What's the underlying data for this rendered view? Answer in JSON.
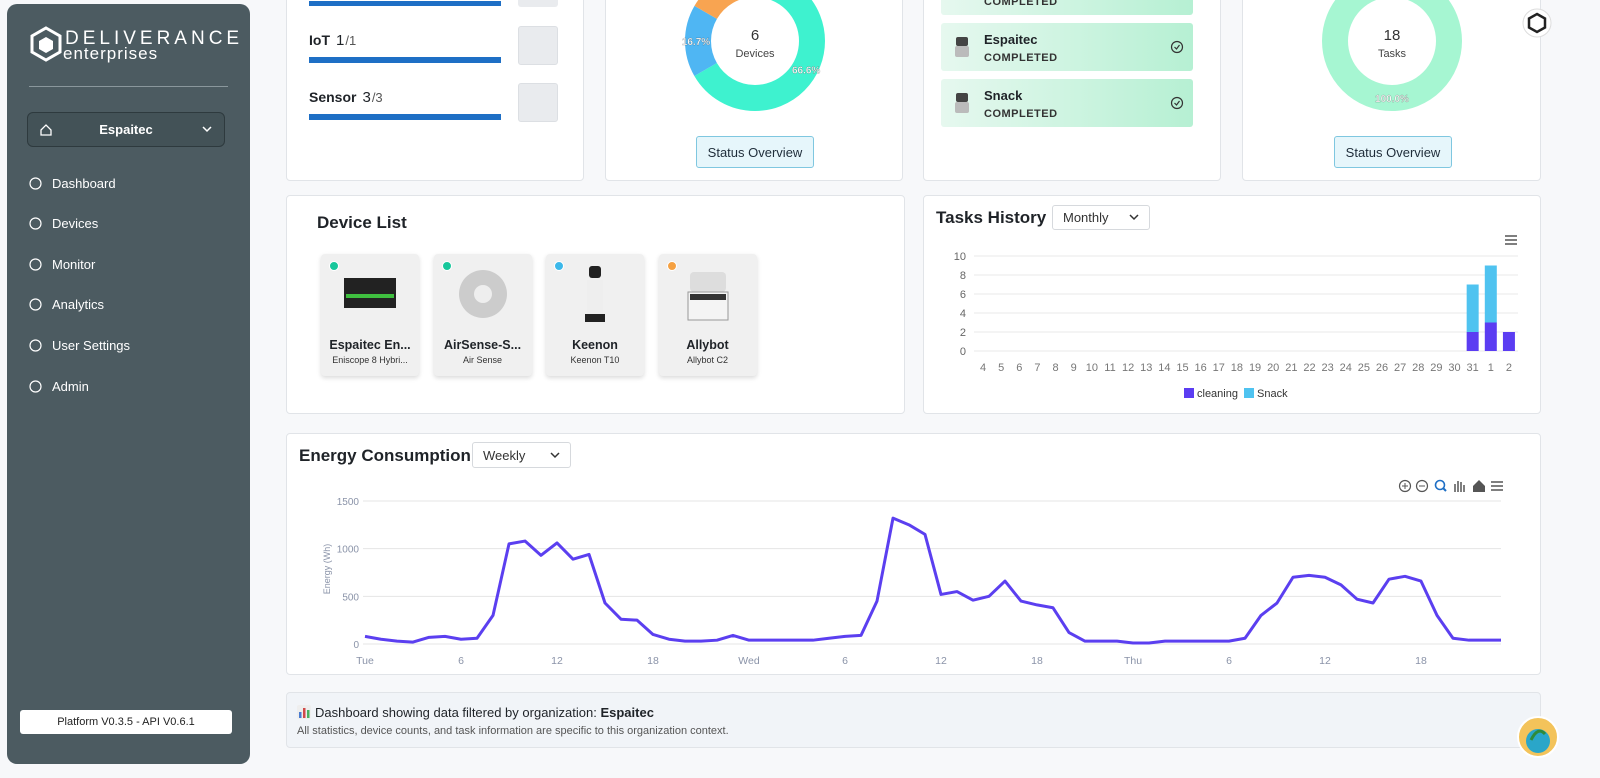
{
  "sidebar": {
    "brand": "DELIVERANCE",
    "brand_sub": "enterprises",
    "organization": "Espaitec",
    "nav": [
      "Dashboard",
      "Devices",
      "Monitor",
      "Analytics",
      "User Settings",
      "Admin"
    ],
    "version": "Platform V0.3.5 - API V0.6.1"
  },
  "device_types": [
    {
      "name": "IoT",
      "count": 1,
      "total": "/1"
    },
    {
      "name": "Sensor",
      "count": 3,
      "total": "/3"
    }
  ],
  "tasks": [
    {
      "status": "COMPLETED"
    },
    {
      "name": "Espaitec",
      "status": "COMPLETED"
    },
    {
      "name": "Snack",
      "status": "COMPLETED"
    }
  ],
  "status_buttons": [
    "Status Overview",
    "Status Overview"
  ],
  "device_list": {
    "title": "Device List",
    "devices": [
      {
        "name": "Espaitec En...",
        "model": "Eniscope 8 Hybri...",
        "status_color": "#17c79b"
      },
      {
        "name": "AirSense-S...",
        "model": "Air Sense",
        "status_color": "#17c79b"
      },
      {
        "name": "Keenon",
        "model": "Keenon T10",
        "status_color": "#3cb8ea"
      },
      {
        "name": "Allybot",
        "model": "Allybot C2",
        "status_color": "#f5a142"
      }
    ]
  },
  "footer": {
    "prefix": "Dashboard showing data filtered by organization:",
    "organization": "Espaitec",
    "note": "All statistics, device counts, and task information are specific to this organization context."
  },
  "chart_data": [
    {
      "type": "donut",
      "center_value": 6,
      "center_label": "Devices",
      "values": [
        66.6,
        16.7,
        16.7
      ],
      "value_labels": [
        "66.6%",
        "16.7%",
        null
      ],
      "colors": [
        "#3ef2cf",
        "#4fb6f3",
        "#f8a451"
      ]
    },
    {
      "type": "donut",
      "center_value": 18,
      "center_label": "Tasks",
      "values": [
        100
      ],
      "value_labels": [
        "100.0%"
      ],
      "colors": [
        "#a6f6d2"
      ]
    },
    {
      "type": "bar",
      "stacked": true,
      "title": "Tasks History",
      "period": "Monthly",
      "categories": [
        "4",
        "5",
        "6",
        "7",
        "8",
        "9",
        "10",
        "11",
        "12",
        "13",
        "14",
        "15",
        "16",
        "17",
        "18",
        "19",
        "20",
        "21",
        "22",
        "23",
        "24",
        "25",
        "26",
        "27",
        "28",
        "29",
        "30",
        "31",
        "1",
        "2"
      ],
      "series": [
        {
          "name": "cleaning",
          "color": "#5b3df2",
          "values": [
            0,
            0,
            0,
            0,
            0,
            0,
            0,
            0,
            0,
            0,
            0,
            0,
            0,
            0,
            0,
            0,
            0,
            0,
            0,
            0,
            0,
            0,
            0,
            0,
            0,
            0,
            0,
            2,
            3,
            2
          ]
        },
        {
          "name": "Snack",
          "color": "#4fc3f0",
          "values": [
            0,
            0,
            0,
            0,
            0,
            0,
            0,
            0,
            0,
            0,
            0,
            0,
            0,
            0,
            0,
            0,
            0,
            0,
            0,
            0,
            0,
            0,
            0,
            0,
            0,
            0,
            0,
            5,
            6,
            0
          ]
        }
      ],
      "ylim": [
        0,
        10
      ],
      "yticks": [
        0,
        2,
        4,
        6,
        8,
        10
      ],
      "grid": true,
      "legend": "bottom"
    },
    {
      "type": "line",
      "title": "Energy Consumption",
      "period": "Weekly",
      "y_label": "Energy (Wh)",
      "color": "#5b3ff0",
      "x": [
        0,
        1,
        2,
        3,
        4,
        5,
        6,
        7,
        8,
        9,
        10,
        11,
        12,
        13,
        14,
        15,
        16,
        17,
        18,
        19,
        20,
        21,
        22,
        23,
        24,
        25,
        26,
        27,
        28,
        29,
        30,
        31,
        32,
        33,
        34,
        35,
        36,
        37,
        38,
        39,
        40,
        41,
        42,
        43,
        44,
        45,
        46,
        47,
        48,
        49,
        50,
        51,
        52,
        53,
        54,
        55,
        56,
        57,
        58,
        59,
        60,
        61,
        62,
        63,
        64,
        65,
        66,
        67,
        68,
        69,
        70,
        71
      ],
      "values": [
        80,
        50,
        30,
        20,
        70,
        80,
        50,
        60,
        300,
        1050,
        1080,
        930,
        1060,
        890,
        940,
        430,
        260,
        250,
        100,
        50,
        30,
        30,
        40,
        90,
        40,
        40,
        40,
        40,
        40,
        60,
        80,
        90,
        450,
        1320,
        1250,
        1150,
        520,
        550,
        460,
        500,
        660,
        450,
        410,
        380,
        120,
        30,
        30,
        30,
        10,
        10,
        30,
        30,
        30,
        30,
        30,
        60,
        300,
        430,
        700,
        720,
        700,
        620,
        470,
        430,
        680,
        710,
        660,
        300,
        60,
        40,
        40,
        40
      ],
      "xlim": [
        0,
        71
      ],
      "xticks": [
        {
          "value": 0,
          "label": "Tue"
        },
        {
          "value": 6,
          "label": "6"
        },
        {
          "value": 12,
          "label": "12"
        },
        {
          "value": 18,
          "label": "18"
        },
        {
          "value": 24,
          "label": "Wed"
        },
        {
          "value": 30,
          "label": "6"
        },
        {
          "value": 36,
          "label": "12"
        },
        {
          "value": 42,
          "label": "18"
        },
        {
          "value": 48,
          "label": "Thu"
        },
        {
          "value": 54,
          "label": "6"
        },
        {
          "value": 60,
          "label": "12"
        },
        {
          "value": 66,
          "label": "18"
        }
      ],
      "ylim": [
        0,
        1500
      ],
      "yticks": [
        0,
        500,
        1000,
        1500
      ],
      "grid": true
    }
  ]
}
